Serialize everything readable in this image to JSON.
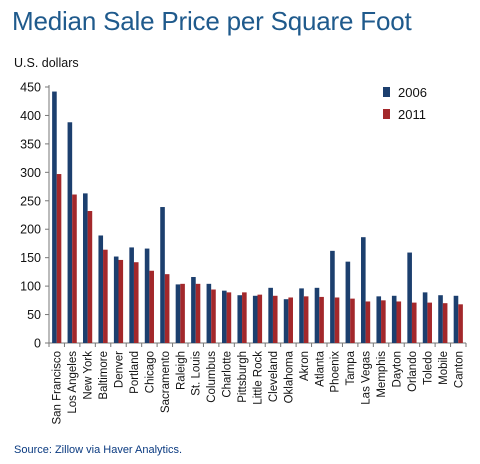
{
  "chart_data": {
    "type": "bar",
    "title": "Median Sale Price per Square Foot",
    "ylabel": "U.S. dollars",
    "xlabel": "",
    "ylim": [
      0,
      450
    ],
    "yticks": [
      0,
      50,
      100,
      150,
      200,
      250,
      300,
      350,
      400,
      450
    ],
    "grid": false,
    "legend_position": "top-right",
    "categories": [
      "San Francisco",
      "Los Angeles",
      "New York",
      "Baltimore",
      "Denver",
      "Portland",
      "Chicago",
      "Sacramento",
      "Raleigh",
      "St. Louis",
      "Columbus",
      "Charlotte",
      "Pittsburgh",
      "Little Rock",
      "Cleveland",
      "Oklahoma",
      "Akron",
      "Atlanta",
      "Phoenix",
      "Tampa",
      "Las Vegas",
      "Memphis",
      "Dayton",
      "Orlando",
      "Toledo",
      "Mobile",
      "Canton"
    ],
    "series": [
      {
        "name": "2006",
        "color": "#1c3f6e",
        "values": [
          442,
          388,
          263,
          189,
          152,
          168,
          166,
          239,
          103,
          116,
          104,
          92,
          84,
          83,
          97,
          77,
          96,
          97,
          162,
          143,
          186,
          82,
          83,
          159,
          89,
          84,
          83
        ]
      },
      {
        "name": "2011",
        "color": "#a3282b",
        "values": [
          297,
          261,
          232,
          164,
          146,
          142,
          127,
          121,
          104,
          104,
          94,
          89,
          89,
          85,
          83,
          80,
          82,
          81,
          80,
          78,
          73,
          75,
          73,
          71,
          71,
          70,
          68
        ]
      }
    ]
  },
  "source": "Source: Zillow via Haver Analytics."
}
